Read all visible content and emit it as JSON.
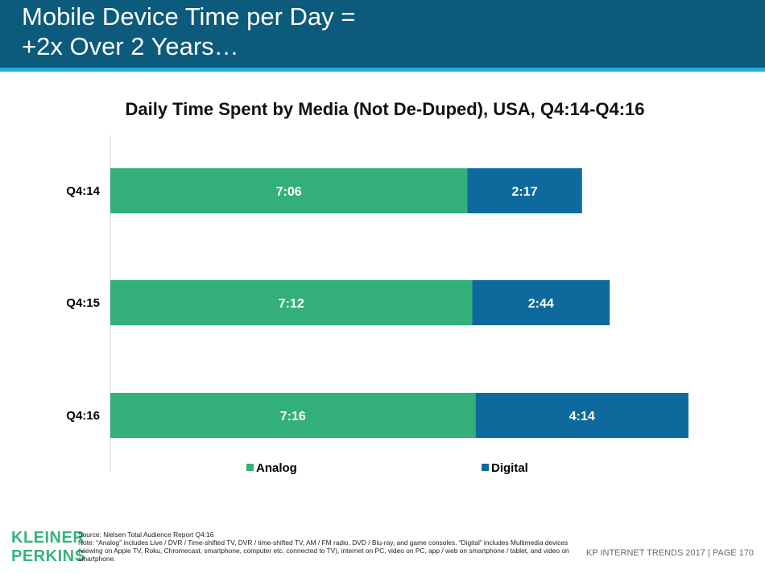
{
  "header": {
    "title_line1": "Mobile Device Time per Day =",
    "title_line2": "+2x Over 2 Years…"
  },
  "colors": {
    "header_bg": "#0c5a7c",
    "header_accent": "#1fb0d8",
    "analog": "#33b07a",
    "digital": "#0e6a9c",
    "brand": "#34b47b"
  },
  "chart_data": {
    "type": "bar",
    "orientation": "horizontal",
    "stacked": true,
    "title": "Daily Time Spent by Media (Not De-Duped), USA, Q4:14-Q4:16",
    "categories": [
      "Q4:14",
      "Q4:15",
      "Q4:16"
    ],
    "series": [
      {
        "name": "Analog",
        "values_minutes": [
          426,
          432,
          436
        ],
        "labels": [
          "7:06",
          "7:12",
          "7:16"
        ]
      },
      {
        "name": "Digital",
        "values_minutes": [
          137,
          164,
          254
        ],
        "labels": [
          "2:17",
          "2:44",
          "4:14"
        ]
      }
    ],
    "xlim_minutes": [
      0,
      766
    ],
    "legend": "bottom",
    "grid": false
  },
  "footer": {
    "logo_line1": "KLEINER",
    "logo_line2": "PERKINS",
    "source": "Source: Nielsen Total Audience Report Q4:16",
    "note": "Note: “Analog” includes Live / DVR / Time-shifted TV, DVR / time-shifted TV, AM / FM radio, DVD / Blu-ray, and game consoles. “Digital” includes Multimedia devices (viewing on Apple TV, Roku, Chromecast, smartphone, computer etc. connected to TV), internet on PC, video on PC, app / web on smartphone / tablet, and video on smartphone.",
    "page_label": "KP INTERNET TRENDS 2017   |   PAGE 170"
  }
}
